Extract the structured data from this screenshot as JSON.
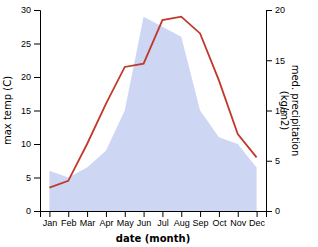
{
  "chart_data": {
    "type": "line",
    "categories": [
      "Jan",
      "Feb",
      "Mar",
      "Apr",
      "May",
      "Jun",
      "Jul",
      "Aug",
      "Sep",
      "Oct",
      "Nov",
      "Dec"
    ],
    "series": [
      {
        "type": "area",
        "color": "#b8c4ee",
        "values": [
          6.0,
          5.0,
          6.5,
          9.0,
          15.0,
          29.0,
          27.5,
          26.0,
          15.0,
          11.0,
          10.0,
          6.5
        ]
      },
      {
        "type": "line",
        "color": "#c0392b",
        "values": [
          3.5,
          4.5,
          10.0,
          16.0,
          21.5,
          22.0,
          28.5,
          29.0,
          26.5,
          19.5,
          11.5,
          8.0
        ]
      }
    ],
    "x_label": "date (month)",
    "y_label": "max temp (C)",
    "y2_label": "med. precipitation\n(kg/m2)",
    "ylim": [
      0,
      30
    ],
    "yticks": [
      0,
      5,
      10,
      15,
      20,
      25,
      30
    ],
    "y2lim": [
      0,
      20
    ],
    "y2ticks": [
      0,
      5,
      10,
      15,
      20
    ],
    "grid": false
  }
}
